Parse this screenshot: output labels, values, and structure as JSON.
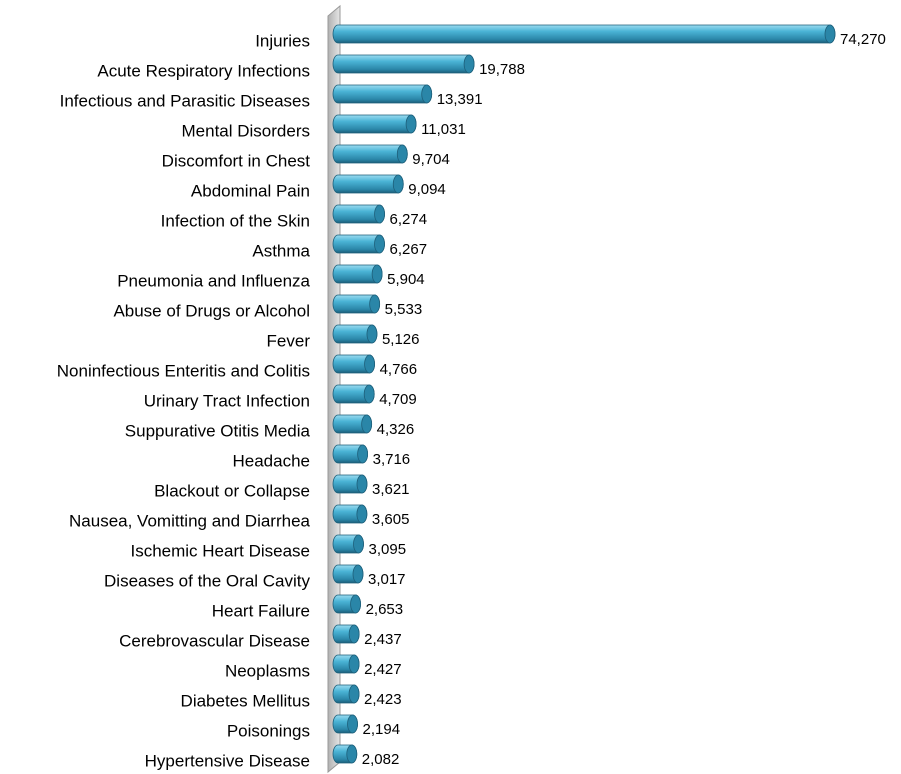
{
  "chart_data": {
    "type": "bar",
    "orientation": "horizontal",
    "color": "#3aa6c8",
    "categories": [
      "Injuries",
      "Acute Respiratory Infections",
      "Infectious and Parasitic Diseases",
      "Mental Disorders",
      "Discomfort in Chest",
      "Abdominal Pain",
      "Infection of the Skin",
      "Asthma",
      "Pneumonia and Influenza",
      "Abuse of Drugs or Alcohol",
      "Fever",
      "Noninfectious Enteritis and Colitis",
      "Urinary Tract Infection",
      "Suppurative Otitis Media",
      "Headache",
      "Blackout or Collapse",
      "Nausea, Vomitting and Diarrhea",
      "Ischemic Heart Disease",
      "Diseases of the Oral Cavity",
      "Heart Failure",
      "Cerebrovascular Disease",
      "Neoplasms",
      "Diabetes Mellitus",
      "Poisonings",
      "Hypertensive Disease"
    ],
    "values": [
      74270,
      19788,
      13391,
      11031,
      9704,
      9094,
      6274,
      6267,
      5904,
      5533,
      5126,
      4766,
      4709,
      4326,
      3716,
      3621,
      3605,
      3095,
      3017,
      2653,
      2437,
      2427,
      2423,
      2194,
      2082
    ],
    "value_labels": [
      "74,270",
      "19,788",
      "13,391",
      "11,031",
      "9,704",
      "9,094",
      "6,274",
      "6,267",
      "5,904",
      "5,533",
      "5,126",
      "4,766",
      "4,709",
      "4,326",
      "3,716",
      "3,621",
      "3,605",
      "3,095",
      "3,017",
      "2,653",
      "2,437",
      "2,427",
      "2,423",
      "2,194",
      "2,082"
    ]
  }
}
